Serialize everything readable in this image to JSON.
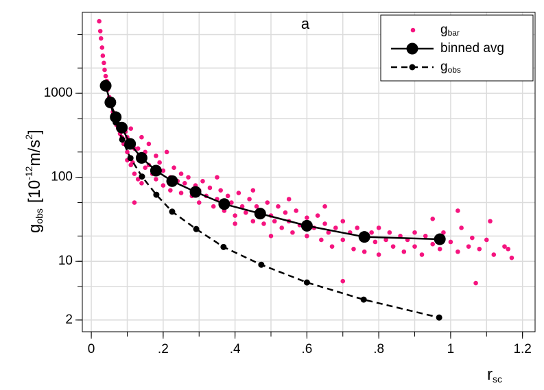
{
  "chart_data": {
    "type": "scatter",
    "title": "a",
    "x_label": {
      "main": "r",
      "sub": "sc"
    },
    "y_label": {
      "main": "g",
      "sub": "obs",
      "open": "[10",
      "exp": "-12",
      "unit": "m/s",
      "unit_exp": "2",
      "close": "]"
    },
    "xlim": [
      -0.025,
      1.235
    ],
    "ylim": [
      1.45,
      9200
    ],
    "log_y": true,
    "grid": true,
    "xticks": [
      0,
      {
        "value": 0.2,
        "label": ".2"
      },
      {
        "value": 0.4,
        "label": ".4"
      },
      {
        "value": 0.6,
        "label": ".6"
      },
      {
        "value": 0.8,
        "label": ".8"
      },
      1,
      1.2
    ],
    "xgrid": [
      0,
      0.1,
      0.2,
      0.3,
      0.4,
      0.5,
      0.6,
      0.7,
      0.8,
      0.9,
      1,
      1.1,
      1.2
    ],
    "yticks": [
      2,
      10,
      100,
      1000
    ],
    "ygrid": [
      2,
      5,
      10,
      20,
      50,
      100,
      200,
      500,
      1000,
      2000,
      5000
    ],
    "legend": "top-right",
    "series": [
      {
        "name": "g",
        "name_sub": "bar",
        "color": "#f5147f",
        "kind": "points",
        "x": [
          0.022,
          0.025,
          0.027,
          0.03,
          0.032,
          0.035,
          0.037,
          0.04,
          0.043,
          0.045,
          0.05,
          0.055,
          0.06,
          0.065,
          0.07,
          0.075,
          0.08,
          0.085,
          0.09,
          0.095,
          0.1,
          0.1,
          0.11,
          0.115,
          0.12,
          0.12,
          0.13,
          0.14,
          0.14,
          0.15,
          0.15,
          0.16,
          0.16,
          0.17,
          0.18,
          0.18,
          0.19,
          0.2,
          0.2,
          0.21,
          0.22,
          0.22,
          0.23,
          0.24,
          0.25,
          0.25,
          0.26,
          0.27,
          0.28,
          0.29,
          0.3,
          0.3,
          0.31,
          0.32,
          0.33,
          0.34,
          0.35,
          0.36,
          0.37,
          0.38,
          0.39,
          0.4,
          0.41,
          0.42,
          0.43,
          0.44,
          0.45,
          0.46,
          0.47,
          0.48,
          0.49,
          0.5,
          0.51,
          0.52,
          0.53,
          0.54,
          0.55,
          0.56,
          0.57,
          0.58,
          0.6,
          0.6,
          0.62,
          0.63,
          0.64,
          0.65,
          0.66,
          0.67,
          0.68,
          0.7,
          0.7,
          0.72,
          0.73,
          0.74,
          0.75,
          0.76,
          0.78,
          0.79,
          0.8,
          0.8,
          0.82,
          0.83,
          0.84,
          0.86,
          0.87,
          0.88,
          0.9,
          0.9,
          0.92,
          0.93,
          0.95,
          0.97,
          0.98,
          1.0,
          1.02,
          1.03,
          1.05,
          1.06,
          1.07,
          1.08,
          1.1,
          1.12,
          1.15,
          1.17,
          1.16,
          0.12,
          0.7,
          0.95,
          1.02,
          1.11,
          0.11,
          0.13,
          0.1,
          0.09,
          0.35,
          0.45,
          0.55,
          0.65,
          0.5,
          0.4
        ],
        "values": [
          7200,
          5500,
          4500,
          3500,
          2800,
          2300,
          1900,
          1600,
          1400,
          1100,
          900,
          700,
          600,
          480,
          420,
          380,
          330,
          300,
          420,
          350,
          200,
          300,
          380,
          150,
          220,
          110,
          95,
          300,
          85,
          200,
          130,
          250,
          140,
          110,
          180,
          95,
          150,
          120,
          80,
          200,
          100,
          70,
          130,
          90,
          110,
          65,
          85,
          100,
          60,
          80,
          70,
          50,
          90,
          60,
          75,
          45,
          55,
          70,
          40,
          60,
          50,
          35,
          65,
          45,
          38,
          55,
          30,
          45,
          40,
          28,
          50,
          35,
          30,
          45,
          25,
          38,
          30,
          22,
          40,
          27,
          33,
          20,
          25,
          35,
          18,
          28,
          22,
          15,
          25,
          30,
          18,
          22,
          14,
          25,
          20,
          13,
          22,
          17,
          25,
          12,
          18,
          22,
          15,
          20,
          13,
          18,
          22,
          15,
          12,
          20,
          16,
          14,
          22,
          17,
          13,
          25,
          15,
          19,
          5.5,
          14,
          18,
          12,
          15,
          11,
          14,
          50,
          5.8,
          32,
          40,
          30,
          140,
          220,
          160,
          250,
          100,
          70,
          55,
          45,
          20,
          28
        ]
      },
      {
        "name": "binned avg",
        "color": "#000000",
        "kind": "solid",
        "x": [
          0.04,
          0.053,
          0.068,
          0.085,
          0.108,
          0.14,
          0.18,
          0.225,
          0.29,
          0.37,
          0.47,
          0.6,
          0.76,
          0.97
        ],
        "values": [
          1230,
          780,
          520,
          390,
          250,
          170,
          120,
          90,
          67,
          48,
          37,
          26.5,
          19.5,
          18.3
        ]
      },
      {
        "name": "g",
        "name_sub": "obs",
        "color": "#000000",
        "kind": "dashed",
        "x": [
          0.04,
          0.053,
          0.068,
          0.086,
          0.109,
          0.141,
          0.181,
          0.225,
          0.292,
          0.368,
          0.473,
          0.6,
          0.758,
          0.968
        ],
        "values": [
          1230,
          760,
          450,
          281,
          169,
          102,
          62,
          39,
          24.2,
          14.8,
          9.1,
          5.6,
          3.5,
          2.14
        ]
      }
    ]
  }
}
